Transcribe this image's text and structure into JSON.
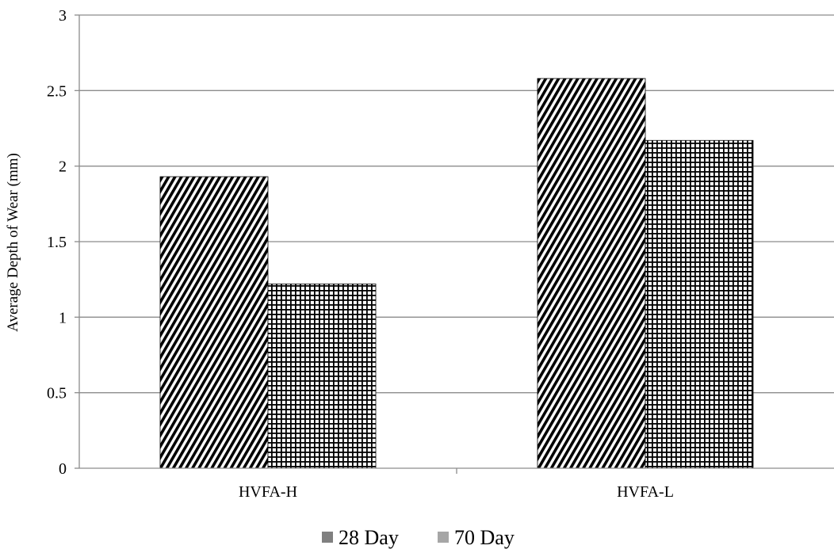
{
  "chart_data": {
    "type": "bar",
    "categories": [
      "HVFA-H",
      "HVFA-L"
    ],
    "series": [
      {
        "name": "28 Day",
        "values": [
          1.93,
          2.58
        ],
        "pattern": "diagonal-stripes",
        "legend_color": "#808080"
      },
      {
        "name": "70 Day",
        "values": [
          1.22,
          2.17
        ],
        "pattern": "grid",
        "legend_color": "#a6a6a6"
      }
    ],
    "title": "",
    "xlabel": "",
    "ylabel": "Average Depth of Wear (mm)",
    "ylim": [
      0,
      3
    ],
    "yticks": [
      0,
      0.5,
      1,
      1.5,
      2,
      2.5,
      3
    ],
    "ytick_labels": [
      "0",
      "0.5",
      "1",
      "1.5",
      "2",
      "2.5",
      "3"
    ],
    "grid": true,
    "legend_position": "bottom",
    "colors": {
      "bar_stroke": "#000000",
      "grid": "#8c8c8c",
      "axis": "#8c8c8c"
    }
  }
}
